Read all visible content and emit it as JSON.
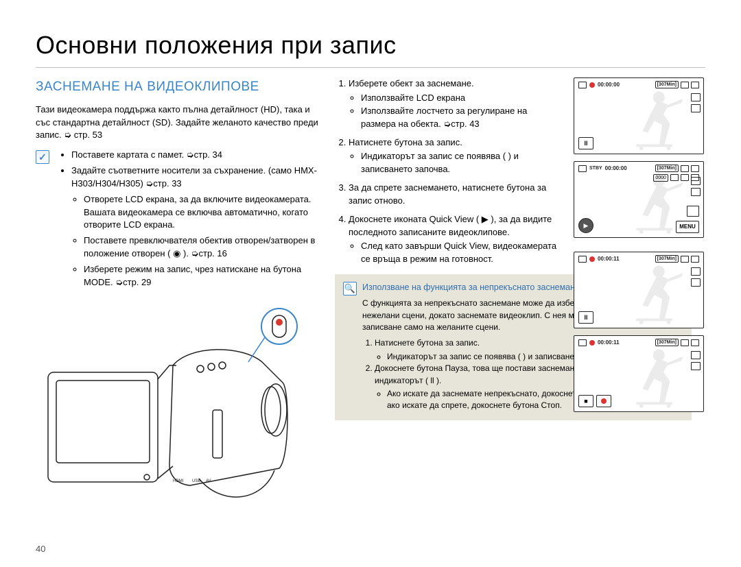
{
  "page_number": "40",
  "title": "Основни положения при запис",
  "section_heading": "ЗАСНЕМАНЕ НА ВИДЕОКЛИПОВЕ",
  "intro": "Тази видеокамера поддържа както пълна детайлност (HD), така и със стандартна детайлност (SD). Задайте желаното качество преди запис. ➭ стр. 53",
  "prechecks": {
    "items": [
      "Поставете картата с памет. ➭стр. 34",
      "Задайте съответните носители за съхранение. (само HMX-H303/H304/H305) ➭стр. 33"
    ],
    "subitems": [
      "Отворете LCD екрана, за да включите видеокамерата. Вашата видеокамера се включва автоматично, когато отворите LCD екрана.",
      "Поставете превключвателя обектив отворен/затворен в положение отворен ( ◉ ). ➭стр. 16",
      "Изберете режим на запис, чрез натискане на бутона MODE. ➭стр. 29"
    ]
  },
  "steps": [
    {
      "text": "Изберете обект за заснемане.",
      "bullets": [
        "Използвайте LCD екрана",
        "Използвайте лостчето за регулиране на размера на обекта. ➭стр. 43"
      ]
    },
    {
      "text": "Натиснете бутона за запис.",
      "bullets": [
        "Индикаторът за запис се появява ( ) и записването започва."
      ]
    },
    {
      "text": "За да спрете заснемането, натиснете бутона за запис отново."
    },
    {
      "text": "Докоснете иконата Quick View ( ▶ ), за да видите последното записаните видеоклипове.",
      "bullets": [
        "След като завърши Quick View, видеокамерата се връща в режим на готовност."
      ]
    }
  ],
  "tip": {
    "title": "Използване на функцията за непрекъснато заснемане",
    "body": "С функцията за непрекъснато заснемане може да избегнете заснемането на нежелани сцени, докато заснемате видеоклип. С нея може да настроите записване само на желаните сцени.",
    "steps": [
      {
        "text": "Натиснете бутона за запис.",
        "bullets": [
          "Индикаторът за запис се появява ( ) и записването започва."
        ]
      },
      {
        "text": "Докоснете бутона Пауза, това ще постави заснемането на пауза и ще се появи индикаторът ( ll ).",
        "bullets": [
          "Ако искате да заснемате непрекъснато, докоснете отново бутона Запис, а ако искате да спрете, докоснете бутона Стоп."
        ]
      }
    ]
  },
  "lcd": {
    "screens": [
      {
        "top_center": "00:00:00",
        "top_remain": "[307Min]",
        "show_pause": true,
        "show_play_circle": false,
        "show_menu": false,
        "stby": ""
      },
      {
        "top_center": "00:00:00",
        "top_remain": "[307Min]",
        "show_pause": false,
        "show_play_circle": true,
        "show_menu": true,
        "stby": "STBY",
        "extra_pill": "0000"
      },
      {
        "top_center": "00:00:11",
        "top_remain": "[307Min]",
        "show_pause": true,
        "show_play_circle": false,
        "show_menu": false,
        "stby": ""
      },
      {
        "top_center": "00:00:11",
        "top_remain": "[307Min]",
        "show_pause": false,
        "show_play_circle": false,
        "show_menu": false,
        "stby": "",
        "show_stop_rec": true
      }
    ],
    "menu_label": "MENU"
  },
  "colors": {
    "accent_blue": "#3a86c9",
    "tip_bg": "#e7e4d9",
    "rule": "#bdbdbd",
    "rec_red": "#d63a2f"
  }
}
